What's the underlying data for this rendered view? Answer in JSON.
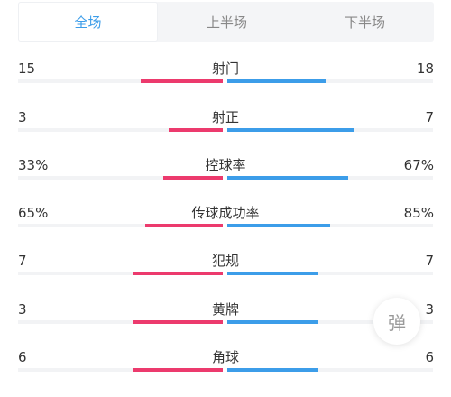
{
  "tabs": [
    {
      "label": "全场",
      "active": true
    },
    {
      "label": "上半场",
      "active": false
    },
    {
      "label": "下半场",
      "active": false
    }
  ],
  "colors": {
    "home": "#ec3a6d",
    "away": "#3c9de9",
    "track": "#f2f3f5",
    "accent": "#3c9de9"
  },
  "stats": [
    {
      "label": "射门",
      "left": "15",
      "right": "18",
      "left_share": 0.455,
      "right_share": 0.545
    },
    {
      "label": "射正",
      "left": "3",
      "right": "7",
      "left_share": 0.3,
      "right_share": 0.7
    },
    {
      "label": "控球率",
      "left": "33%",
      "right": "67%",
      "left_share": 0.33,
      "right_share": 0.67
    },
    {
      "label": "传球成功率",
      "left": "65%",
      "right": "85%",
      "left_share": 0.433,
      "right_share": 0.567
    },
    {
      "label": "犯规",
      "left": "7",
      "right": "7",
      "left_share": 0.5,
      "right_share": 0.5
    },
    {
      "label": "黄牌",
      "left": "3",
      "right": "3",
      "left_share": 0.5,
      "right_share": 0.5
    },
    {
      "label": "角球",
      "left": "6",
      "right": "6",
      "left_share": 0.5,
      "right_share": 0.5
    }
  ],
  "float_button": {
    "label": "弹"
  }
}
